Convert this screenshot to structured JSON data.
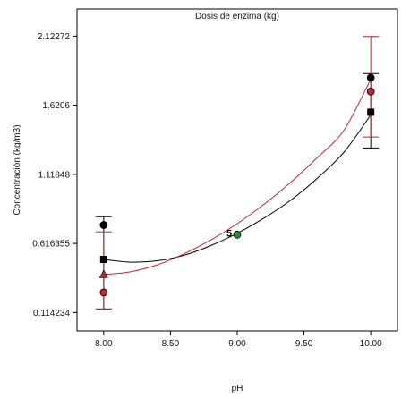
{
  "chart_data": {
    "type": "scatter",
    "title": "Dosis de enzima (kg)",
    "xlabel": "pH",
    "ylabel": "Concentración (kg/m3)",
    "xlim": [
      7.8,
      10.2
    ],
    "ylim": [
      -0.02,
      2.32
    ],
    "x_ticks": [
      8.0,
      8.5,
      9.0,
      9.5,
      10.0
    ],
    "x_tick_labels": [
      "8.00",
      "8.50",
      "9.00",
      "9.50",
      "10.00"
    ],
    "y_ticks": [
      0.114234,
      0.616355,
      1.11848,
      1.6206,
      2.12272
    ],
    "y_tick_labels": [
      "0.114234",
      "0.616355",
      "1.11848",
      "1.6206",
      "2.12272"
    ],
    "grid": false,
    "colors": {
      "black": "#000000",
      "red": "#c0272d",
      "green": "#2e8b3a"
    },
    "series": [
      {
        "color": "#000000",
        "curve": [
          [
            8.0,
            0.5
          ],
          [
            8.2,
            0.48
          ],
          [
            8.4,
            0.49
          ],
          [
            8.6,
            0.53
          ],
          [
            8.8,
            0.6
          ],
          [
            9.0,
            0.69
          ],
          [
            9.2,
            0.8
          ],
          [
            9.4,
            0.93
          ],
          [
            9.6,
            1.09
          ],
          [
            9.8,
            1.28
          ],
          [
            10.0,
            1.55
          ]
        ],
        "error_bars": [
          {
            "x": 8.0,
            "lower": 0.14,
            "upper": 0.81
          },
          {
            "x": 10.0,
            "lower": 1.31,
            "upper": 1.85
          }
        ],
        "points": [
          {
            "x": 8.0,
            "y": 0.75,
            "marker": "circle",
            "color": "#000000"
          },
          {
            "x": 8.0,
            "y": 0.5,
            "marker": "square",
            "color": "#000000"
          },
          {
            "x": 10.0,
            "y": 1.82,
            "marker": "circle",
            "color": "#000000"
          },
          {
            "x": 10.0,
            "y": 1.57,
            "marker": "square",
            "color": "#000000"
          }
        ]
      },
      {
        "color": "#c0272d",
        "curve": [
          [
            8.0,
            0.39
          ],
          [
            8.2,
            0.41
          ],
          [
            8.4,
            0.46
          ],
          [
            8.6,
            0.54
          ],
          [
            8.8,
            0.64
          ],
          [
            9.0,
            0.76
          ],
          [
            9.2,
            0.9
          ],
          [
            9.4,
            1.06
          ],
          [
            9.6,
            1.24
          ],
          [
            9.8,
            1.44
          ],
          [
            10.0,
            1.81
          ]
        ],
        "error_bars": [
          {
            "x": 8.0,
            "lower": 0.14,
            "upper": 0.7
          },
          {
            "x": 10.0,
            "lower": 1.39,
            "upper": 2.12
          }
        ],
        "points": [
          {
            "x": 8.0,
            "y": 0.39,
            "marker": "triangle",
            "color": "#c0272d"
          },
          {
            "x": 8.0,
            "y": 0.26,
            "marker": "circle",
            "color": "#c0272d"
          },
          {
            "x": 10.0,
            "y": 1.72,
            "marker": "circle",
            "color": "#c0272d"
          }
        ]
      }
    ],
    "center_point": {
      "x": 9.0,
      "y": 0.68,
      "color": "#2e8b3a",
      "label": "5"
    }
  }
}
